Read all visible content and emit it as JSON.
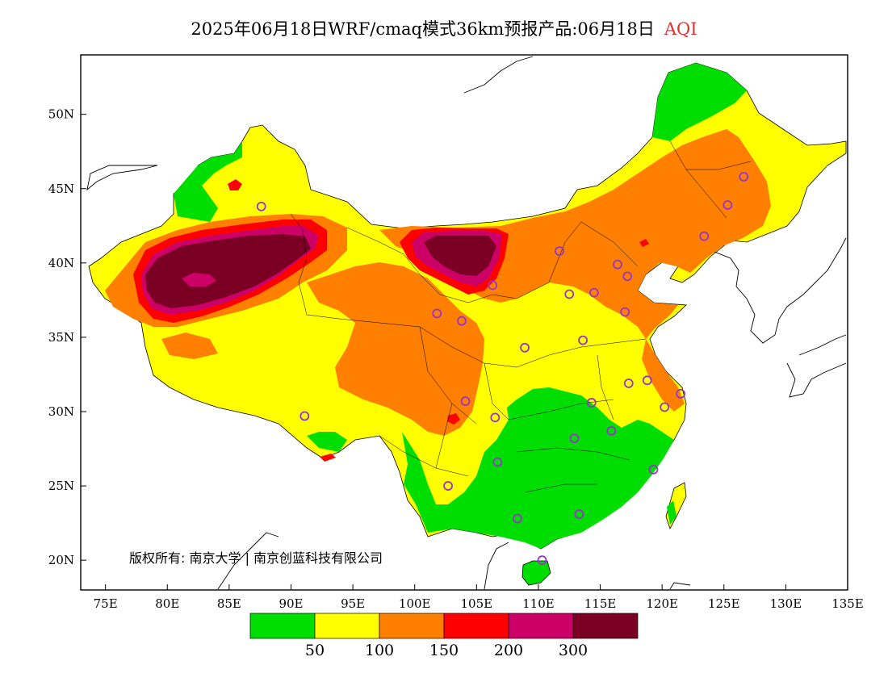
{
  "title": {
    "main": "2025年06月18日WRF/cmaq模式36km预报产品:06月18日",
    "variable": "AQI"
  },
  "map": {
    "lon_range": [
      73,
      135
    ],
    "lat_range": [
      18,
      54
    ],
    "lon_ticks": [
      {
        "value": 75,
        "label": "75E"
      },
      {
        "value": 80,
        "label": "80E"
      },
      {
        "value": 85,
        "label": "85E"
      },
      {
        "value": 90,
        "label": "90E"
      },
      {
        "value": 95,
        "label": "95E"
      },
      {
        "value": 100,
        "label": "100E"
      },
      {
        "value": 105,
        "label": "105E"
      },
      {
        "value": 110,
        "label": "110E"
      },
      {
        "value": 115,
        "label": "115E"
      },
      {
        "value": 120,
        "label": "120E"
      },
      {
        "value": 125,
        "label": "125E"
      },
      {
        "value": 130,
        "label": "130E"
      },
      {
        "value": 135,
        "label": "135E"
      }
    ],
    "lat_ticks": [
      {
        "value": 20,
        "label": "20N"
      },
      {
        "value": 25,
        "label": "25N"
      },
      {
        "value": 30,
        "label": "30N"
      },
      {
        "value": 35,
        "label": "35N"
      },
      {
        "value": 40,
        "label": "40N"
      },
      {
        "value": 45,
        "label": "45N"
      },
      {
        "value": 50,
        "label": "50N"
      }
    ],
    "copyright": "版权所有: 南京大学 | 南京创蓝科技有限公司",
    "colors": {
      "good": "#00dd00",
      "moderate": "#ffff00",
      "sensitive": "#ff8000",
      "unhealthy": "#ff0000",
      "very_unhealthy": "#cc0066",
      "hazardous": "#7a0024",
      "station": "#9933cc",
      "coast": "#000000"
    },
    "stations": [
      [
        87.6,
        43.8
      ],
      [
        91.1,
        29.7
      ],
      [
        101.8,
        36.6
      ],
      [
        103.8,
        36.1
      ],
      [
        106.3,
        38.5
      ],
      [
        111.7,
        40.8
      ],
      [
        112.5,
        37.9
      ],
      [
        114.5,
        38.0
      ],
      [
        116.4,
        39.9
      ],
      [
        117.2,
        39.1
      ],
      [
        117.0,
        36.7
      ],
      [
        113.6,
        34.8
      ],
      [
        108.9,
        34.3
      ],
      [
        104.1,
        30.7
      ],
      [
        106.5,
        29.6
      ],
      [
        106.7,
        26.6
      ],
      [
        102.7,
        25.0
      ],
      [
        108.3,
        22.8
      ],
      [
        110.3,
        20.0
      ],
      [
        113.3,
        23.1
      ],
      [
        112.9,
        28.2
      ],
      [
        114.3,
        30.6
      ],
      [
        115.9,
        28.7
      ],
      [
        117.3,
        31.9
      ],
      [
        118.8,
        32.1
      ],
      [
        120.2,
        30.3
      ],
      [
        121.5,
        31.2
      ],
      [
        119.3,
        26.1
      ],
      [
        123.4,
        41.8
      ],
      [
        125.3,
        43.9
      ],
      [
        126.6,
        45.8
      ]
    ]
  },
  "legend": {
    "labels": [
      "50",
      "100",
      "150",
      "200",
      "300"
    ]
  }
}
